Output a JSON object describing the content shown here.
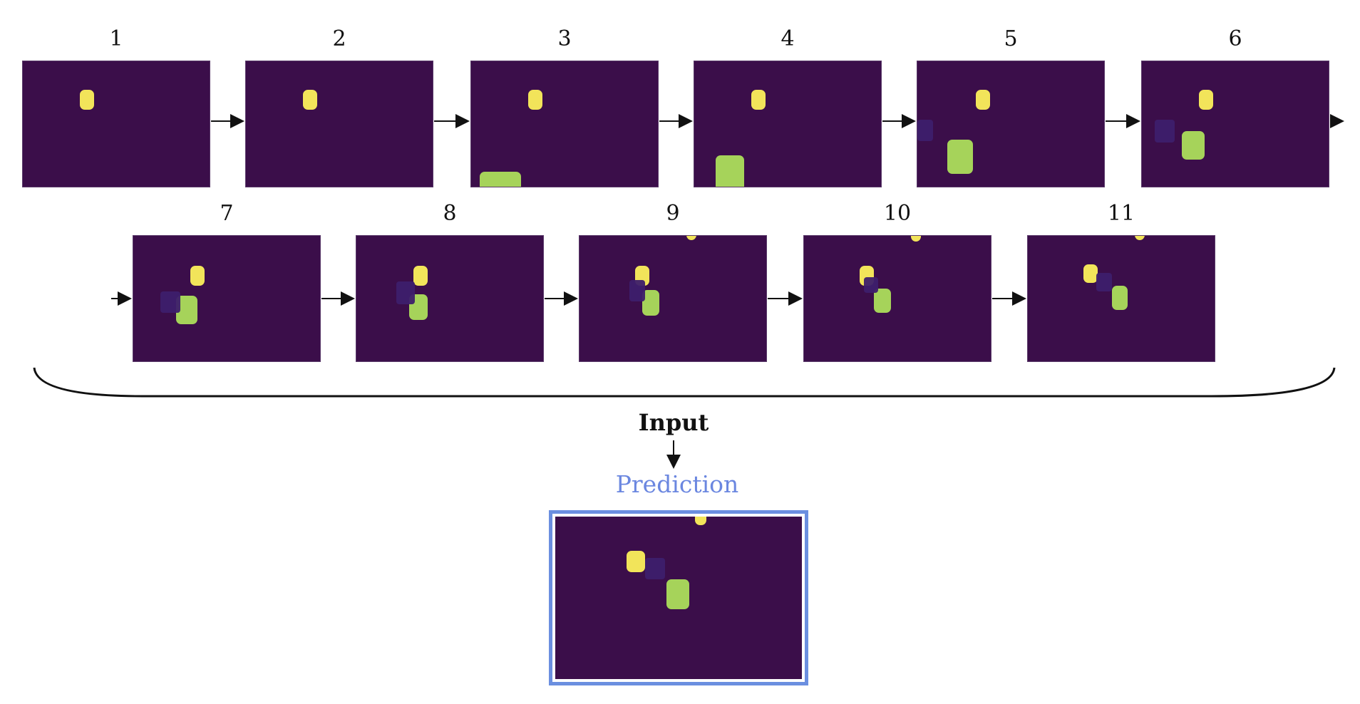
{
  "frames": [
    {
      "label": "1"
    },
    {
      "label": "2"
    },
    {
      "label": "3"
    },
    {
      "label": "4"
    },
    {
      "label": "5"
    },
    {
      "label": "6"
    },
    {
      "label": "7"
    },
    {
      "label": "8"
    },
    {
      "label": "9"
    },
    {
      "label": "10"
    },
    {
      "label": "11"
    }
  ],
  "input_label": "Input",
  "prediction_label": "Prediction",
  "colors": {
    "background": "#3b0e4a",
    "yellow_object": "#f2e45a",
    "green_object": "#a6d35a",
    "dark_object": "#3d1f6b",
    "prediction_border": "#6b8fe0",
    "prediction_text": "#6b87e0"
  }
}
